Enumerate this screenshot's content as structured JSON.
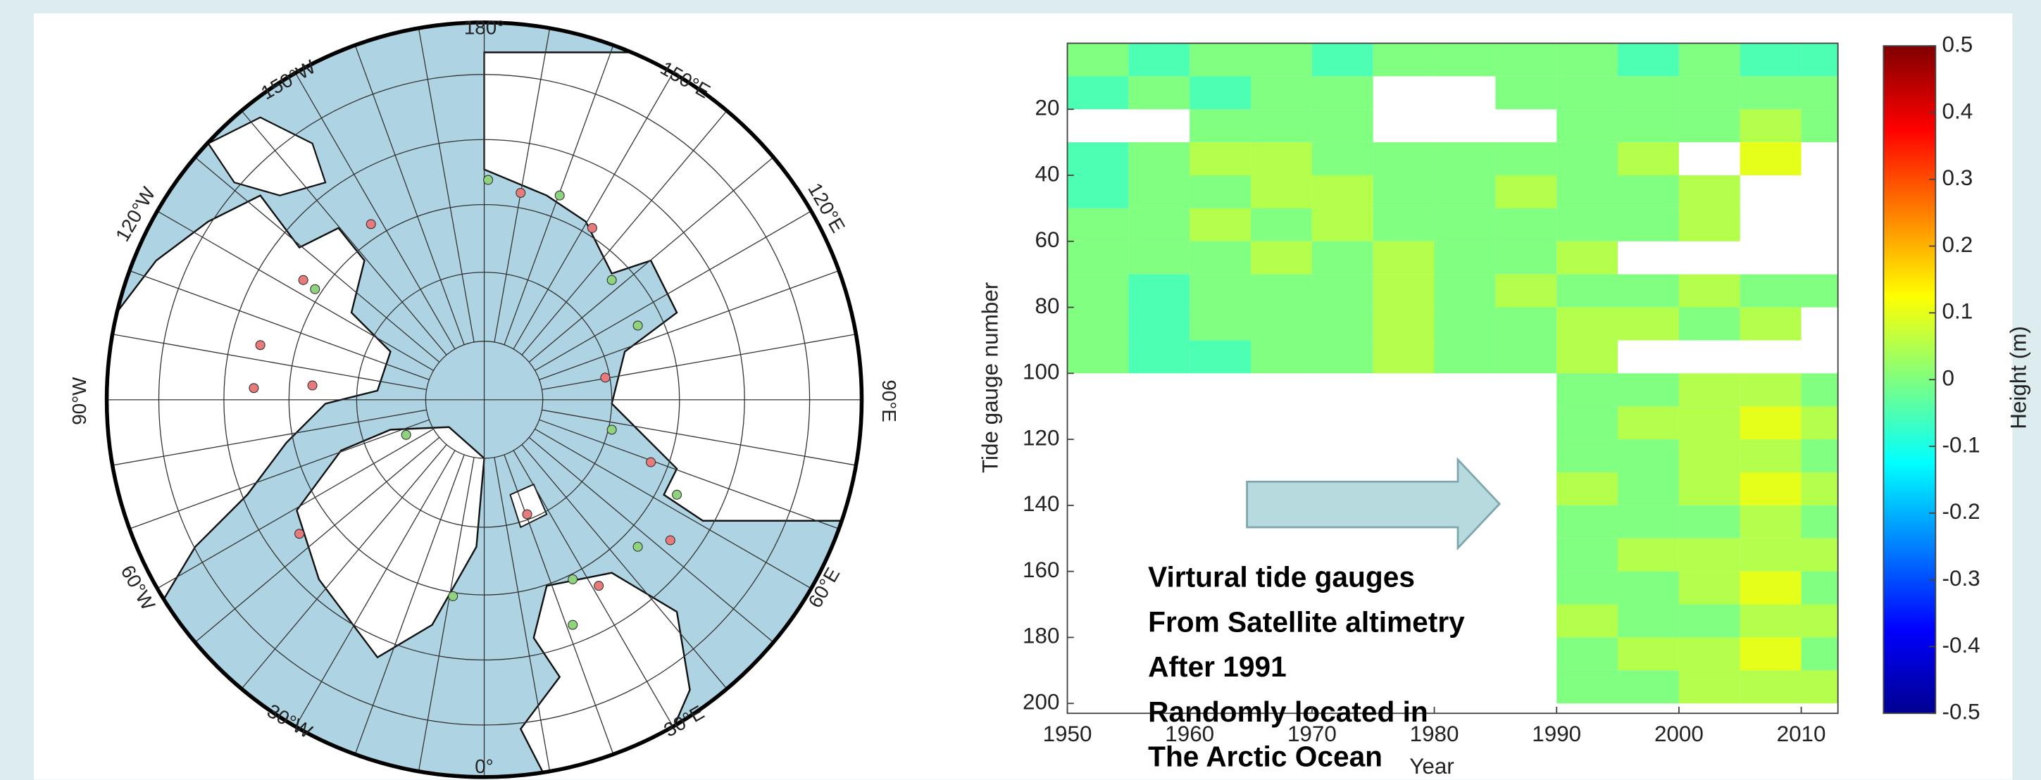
{
  "map": {
    "labels": [
      "180°",
      "150°W",
      "150°E",
      "120°W",
      "120°E",
      "90°W",
      "90°E",
      "60°W",
      "60°E",
      "30°W",
      "30°E",
      "0°"
    ]
  },
  "chart_data": {
    "type": "heatmap",
    "x_label": "Year",
    "y_label": "Tide gauge number",
    "colorbar_label": "Height (m)",
    "colormap": "jet",
    "x_bins": [
      1950,
      1955,
      1960,
      1965,
      1970,
      1975,
      1980,
      1985,
      1990,
      1995,
      2000,
      2005,
      2010,
      2013
    ],
    "y_bins": [
      0,
      10,
      20,
      30,
      40,
      50,
      60,
      70,
      80,
      90,
      100,
      110,
      120,
      130,
      140,
      150,
      160,
      170,
      180,
      190,
      200
    ],
    "z": [
      [
        0.0,
        -0.05,
        0.0,
        0.0,
        -0.05,
        0.0,
        0.0,
        0.0,
        0.0,
        -0.05,
        0.0,
        -0.05,
        -0.05
      ],
      [
        -0.05,
        0.0,
        -0.05,
        0.0,
        0.0,
        null,
        null,
        0.0,
        0.0,
        0.0,
        0.0,
        0.0,
        0.0
      ],
      [
        null,
        null,
        0.0,
        0.0,
        0.0,
        null,
        null,
        null,
        0.0,
        0.0,
        0.0,
        0.05,
        0.0
      ],
      [
        -0.05,
        0.0,
        0.05,
        0.05,
        0.0,
        0.0,
        0.0,
        0.0,
        0.0,
        0.05,
        null,
        0.1,
        null
      ],
      [
        -0.05,
        0.0,
        0.0,
        0.05,
        0.05,
        0.0,
        0.0,
        0.05,
        0.0,
        0.0,
        0.05,
        null,
        null
      ],
      [
        0.0,
        0.0,
        0.05,
        0.0,
        0.05,
        0.0,
        0.0,
        0.0,
        0.0,
        0.0,
        0.05,
        null,
        null
      ],
      [
        0.0,
        0.0,
        0.0,
        0.05,
        0.0,
        0.05,
        0.0,
        0.0,
        0.05,
        null,
        null,
        null,
        null
      ],
      [
        0.0,
        -0.05,
        0.0,
        0.0,
        0.0,
        0.05,
        0.0,
        0.05,
        0.0,
        0.0,
        0.05,
        0.0,
        0.0
      ],
      [
        0.0,
        -0.05,
        0.0,
        0.0,
        0.0,
        0.05,
        0.0,
        0.0,
        0.05,
        0.05,
        0.0,
        0.05,
        null
      ],
      [
        0.0,
        -0.05,
        -0.05,
        0.0,
        0.0,
        0.05,
        0.0,
        0.0,
        0.05,
        null,
        null,
        null,
        null
      ],
      [
        null,
        null,
        null,
        null,
        null,
        null,
        null,
        null,
        0.0,
        0.0,
        0.05,
        0.05,
        0.0
      ],
      [
        null,
        null,
        null,
        null,
        null,
        null,
        null,
        null,
        0.0,
        0.05,
        0.05,
        0.1,
        0.05
      ],
      [
        null,
        null,
        null,
        null,
        null,
        null,
        null,
        null,
        0.0,
        0.0,
        0.05,
        0.05,
        0.0
      ],
      [
        null,
        null,
        null,
        null,
        null,
        null,
        null,
        null,
        0.05,
        0.0,
        0.05,
        0.1,
        0.05
      ],
      [
        null,
        null,
        null,
        null,
        null,
        null,
        null,
        null,
        0.0,
        0.0,
        0.0,
        0.05,
        0.0
      ],
      [
        null,
        null,
        null,
        null,
        null,
        null,
        null,
        null,
        0.0,
        0.05,
        0.05,
        0.05,
        0.05
      ],
      [
        null,
        null,
        null,
        null,
        null,
        null,
        null,
        null,
        0.0,
        0.0,
        0.05,
        0.1,
        0.0
      ],
      [
        null,
        null,
        null,
        null,
        null,
        null,
        null,
        null,
        0.05,
        0.0,
        0.0,
        0.05,
        0.05
      ],
      [
        null,
        null,
        null,
        null,
        null,
        null,
        null,
        null,
        0.0,
        0.05,
        0.05,
        0.1,
        0.0
      ],
      [
        null,
        null,
        null,
        null,
        null,
        null,
        null,
        null,
        0.0,
        0.0,
        0.05,
        0.05,
        0.05
      ]
    ],
    "xlim": [
      1950,
      2013
    ],
    "ylim": [
      0,
      203
    ],
    "y_reversed": true,
    "xticks": [
      1950,
      1960,
      1970,
      1980,
      1990,
      2000,
      2010
    ],
    "yticks": [
      20,
      40,
      60,
      80,
      100,
      120,
      140,
      160,
      180,
      200
    ],
    "clim": [
      -0.5,
      0.5
    ],
    "cticks": [
      0.5,
      0.4,
      0.3,
      0.2,
      0.1,
      0,
      -0.1,
      -0.2,
      -0.3,
      -0.4,
      -0.5
    ],
    "annotations": [
      "Virtural tide gauges",
      "From Satellite altimetry",
      "After 1991",
      "Randomly located in",
      "The Arctic Ocean"
    ]
  }
}
